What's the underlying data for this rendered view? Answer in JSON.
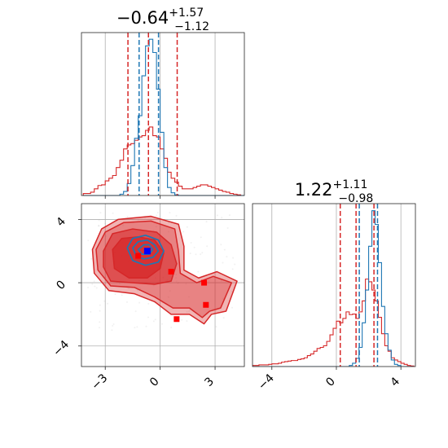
{
  "colors": {
    "red": "#d62728",
    "blue": "#1f77b4",
    "grid": "#b0b0b0"
  },
  "titles": {
    "p1": {
      "median": "−0.64",
      "plus": "+1.57",
      "minus": "−1.12"
    },
    "p2": {
      "median": "1.22",
      "plus": "+1.11",
      "minus": "−0.98"
    }
  },
  "chart_data": [
    {
      "type": "histogram",
      "panel": "top-left",
      "xlim": [
        -4.3,
        4.6
      ],
      "ticks": [
        -3,
        0,
        3
      ],
      "bin_centers": [
        -4.1,
        -3.9,
        -3.7,
        -3.5,
        -3.3,
        -3.1,
        -2.9,
        -2.7,
        -2.5,
        -2.3,
        -2.1,
        -1.9,
        -1.7,
        -1.5,
        -1.3,
        -1.1,
        -0.9,
        -0.7,
        -0.5,
        -0.3,
        -0.1,
        0.1,
        0.3,
        0.5,
        0.7,
        0.9,
        1.1,
        1.3,
        1.5,
        1.7,
        1.9,
        2.1,
        2.3,
        2.5,
        2.7,
        2.9,
        3.1,
        3.3,
        3.5,
        3.7,
        3.9,
        4.1,
        4.3,
        4.5
      ],
      "series": [
        {
          "name": "red",
          "values": [
            0.3,
            0.3,
            0.5,
            1.0,
            1.5,
            1.6,
            2.2,
            2.6,
            3.0,
            4.2,
            5.3,
            7.0,
            7.6,
            7.8,
            8.3,
            8.8,
            9.0,
            9.8,
            10.3,
            9.0,
            8.8,
            7.0,
            5.6,
            3.5,
            2.6,
            2.0,
            1.4,
            1.0,
            1.0,
            1.0,
            1.2,
            1.4,
            1.6,
            1.6,
            1.4,
            1.2,
            1.0,
            0.8,
            0.6,
            0.5,
            0.3,
            0.2,
            0.1,
            0.0
          ]
        },
        {
          "name": "blue",
          "values": [
            0,
            0,
            0,
            0,
            0,
            0,
            0,
            0,
            0,
            0,
            0.2,
            0.6,
            1.8,
            4.5,
            8.6,
            12.0,
            18.0,
            22.5,
            23.5,
            21.5,
            16.0,
            9.5,
            4.2,
            1.2,
            0.4,
            0.1,
            0,
            0,
            0,
            0,
            0,
            0,
            0,
            0,
            0,
            0,
            0,
            0,
            0,
            0,
            0,
            0,
            0,
            0
          ]
        }
      ],
      "quantile_lines": [
        {
          "color": "red",
          "x": [
            -1.76,
            -0.64,
            0.93
          ]
        },
        {
          "color": "blue",
          "x": [
            -1.15,
            -0.09
          ]
        }
      ]
    },
    {
      "type": "contour",
      "panel": "bottom-left",
      "xlim": [
        -4.3,
        4.6
      ],
      "ylim": [
        -5.3,
        5.0
      ],
      "xticks": [
        -3,
        0,
        3
      ],
      "yticks": [
        -4,
        0,
        4
      ],
      "red_levels": [
        [
          [
            -3.7,
            2.1
          ],
          [
            -3.2,
            3.4
          ],
          [
            -2.3,
            4.0
          ],
          [
            -0.5,
            4.2
          ],
          [
            1.0,
            3.7
          ],
          [
            1.3,
            2.3
          ],
          [
            1.3,
            0.8
          ],
          [
            2.1,
            0.3
          ],
          [
            3.1,
            0.7
          ],
          [
            4.2,
            0.1
          ],
          [
            3.6,
            -1.8
          ],
          [
            2.8,
            -2.0
          ],
          [
            2.4,
            -2.6
          ],
          [
            1.6,
            -2.0
          ],
          [
            0.6,
            -2.0
          ],
          [
            -0.3,
            -1.2
          ],
          [
            -1.4,
            -0.7
          ],
          [
            -2.8,
            -0.5
          ],
          [
            -3.6,
            0.6
          ]
        ],
        [
          [
            -3.5,
            2.1
          ],
          [
            -3.0,
            3.2
          ],
          [
            -2.0,
            3.8
          ],
          [
            -0.5,
            3.9
          ],
          [
            0.8,
            3.4
          ],
          [
            1.0,
            2.0
          ],
          [
            1.1,
            0.6
          ],
          [
            2.0,
            0.0
          ],
          [
            2.9,
            0.4
          ],
          [
            3.9,
            0.0
          ],
          [
            3.3,
            -1.6
          ],
          [
            2.7,
            -1.8
          ],
          [
            2.3,
            -2.2
          ],
          [
            1.6,
            -1.6
          ],
          [
            0.7,
            -1.6
          ],
          [
            -0.3,
            -0.9
          ],
          [
            -1.4,
            -0.3
          ],
          [
            -2.7,
            -0.2
          ],
          [
            -3.4,
            0.8
          ]
        ],
        [
          [
            -3.1,
            2.0
          ],
          [
            -2.6,
            3.1
          ],
          [
            -1.5,
            3.4
          ],
          [
            -0.2,
            3.2
          ],
          [
            0.6,
            2.4
          ],
          [
            0.9,
            1.2
          ],
          [
            0.6,
            0.1
          ],
          [
            -0.3,
            -0.1
          ],
          [
            -1.5,
            0.0
          ],
          [
            -2.7,
            0.1
          ],
          [
            -3.1,
            1.0
          ]
        ],
        [
          [
            -2.6,
            2.1
          ],
          [
            -2.1,
            2.8
          ],
          [
            -1.2,
            2.9
          ],
          [
            -0.3,
            2.7
          ],
          [
            0.2,
            1.9
          ],
          [
            0.0,
            0.9
          ],
          [
            -0.7,
            0.3
          ],
          [
            -1.7,
            0.3
          ],
          [
            -2.5,
            0.9
          ]
        ]
      ],
      "blue_levels": [
        [
          [
            -1.8,
            2.2
          ],
          [
            -1.5,
            2.8
          ],
          [
            -0.8,
            3.0
          ],
          [
            -0.1,
            2.7
          ],
          [
            0.2,
            2.0
          ],
          [
            -0.1,
            1.3
          ],
          [
            -0.8,
            1.1
          ],
          [
            -1.5,
            1.4
          ]
        ],
        [
          [
            -1.5,
            2.2
          ],
          [
            -1.2,
            2.6
          ],
          [
            -0.7,
            2.7
          ],
          [
            -0.3,
            2.4
          ],
          [
            -0.1,
            2.0
          ],
          [
            -0.4,
            1.6
          ],
          [
            -0.9,
            1.5
          ],
          [
            -1.3,
            1.7
          ]
        ],
        [
          [
            -1.2,
            2.1
          ],
          [
            -0.9,
            2.4
          ],
          [
            -0.6,
            2.4
          ],
          [
            -0.4,
            2.1
          ],
          [
            -0.6,
            1.8
          ],
          [
            -1.0,
            1.8
          ]
        ]
      ],
      "points": [
        {
          "x": -0.7,
          "y": 2.0,
          "color": "blue"
        },
        {
          "x": -1.2,
          "y": 1.7,
          "color": "red"
        },
        {
          "x": 0.6,
          "y": 0.7,
          "color": "red"
        },
        {
          "x": 2.4,
          "y": 0.0,
          "color": "red"
        },
        {
          "x": 2.5,
          "y": -1.4,
          "color": "red"
        },
        {
          "x": 0.9,
          "y": -2.3,
          "color": "red"
        }
      ]
    },
    {
      "type": "histogram",
      "panel": "bottom-right",
      "xlim": [
        -5.2,
        4.9
      ],
      "ticks": [
        -4,
        0,
        4
      ],
      "bin_centers": [
        -5.1,
        -4.9,
        -4.7,
        -4.5,
        -4.3,
        -4.1,
        -3.9,
        -3.7,
        -3.5,
        -3.3,
        -3.1,
        -2.9,
        -2.7,
        -2.5,
        -2.3,
        -2.1,
        -1.9,
        -1.7,
        -1.5,
        -1.3,
        -1.1,
        -0.9,
        -0.7,
        -0.5,
        -0.3,
        -0.1,
        0.1,
        0.3,
        0.5,
        0.7,
        0.9,
        1.1,
        1.3,
        1.5,
        1.7,
        1.9,
        2.1,
        2.3,
        2.5,
        2.7,
        2.9,
        3.1,
        3.3,
        3.5,
        3.7,
        3.9,
        4.1,
        4.3,
        4.5,
        4.7
      ],
      "series": [
        {
          "name": "red",
          "values": [
            0.2,
            0.2,
            0.3,
            0.3,
            0.3,
            0.4,
            0.5,
            0.5,
            0.6,
            0.8,
            0.9,
            1.0,
            1.1,
            1.1,
            1.3,
            1.4,
            1.6,
            2.0,
            2.3,
            2.8,
            3.3,
            3.5,
            3.8,
            4.6,
            5.8,
            7.0,
            8.3,
            8.0,
            8.8,
            10.0,
            9.5,
            9.6,
            8.8,
            10.0,
            12.0,
            16.0,
            15.5,
            14.0,
            12.0,
            9.0,
            6.0,
            3.8,
            2.8,
            1.6,
            1.2,
            0.9,
            0.6,
            0.4,
            0.2,
            0.1
          ]
        },
        {
          "name": "blue",
          "values": [
            0,
            0,
            0,
            0,
            0,
            0,
            0,
            0,
            0,
            0,
            0,
            0,
            0,
            0,
            0,
            0,
            0,
            0,
            0,
            0,
            0,
            0,
            0,
            0,
            0,
            0,
            0,
            0,
            0,
            0,
            0.2,
            0.6,
            1.5,
            3.5,
            8.0,
            14.0,
            22.0,
            28.5,
            26.0,
            19.0,
            11.0,
            6.0,
            3.0,
            1.2,
            0.4,
            0.2,
            0,
            0,
            0,
            0
          ]
        }
      ],
      "quantile_lines": [
        {
          "color": "red",
          "x": [
            0.24,
            1.22,
            2.33
          ]
        },
        {
          "color": "blue",
          "x": [
            1.42,
            2.55
          ]
        }
      ]
    }
  ]
}
